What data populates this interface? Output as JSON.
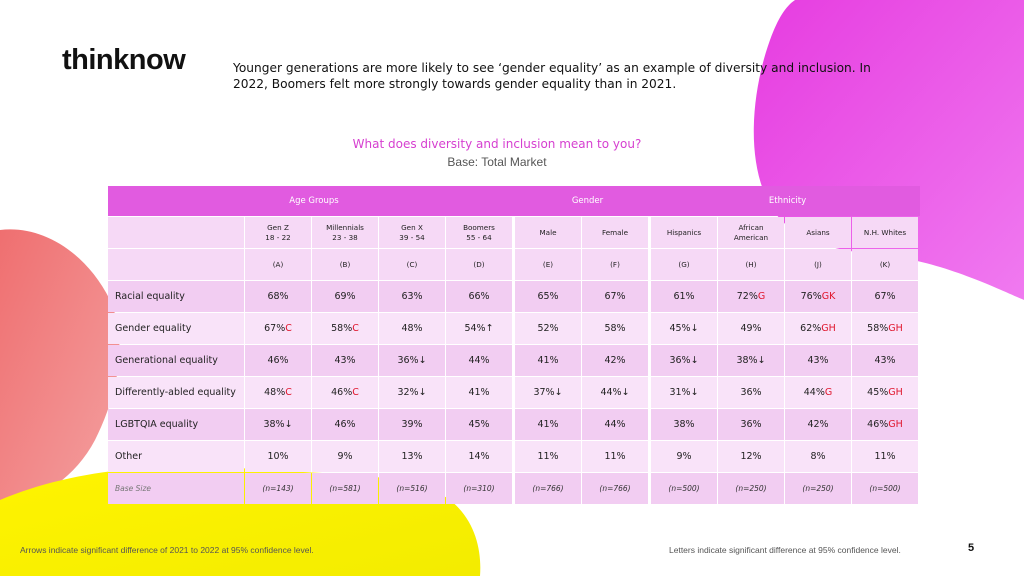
{
  "brand": {
    "logo_text": "thinknow"
  },
  "headline": "Younger generations are more likely to see ‘gender equality’ as an example of diversity and inclusion.  In 2022, Boomers felt more strongly towards gender equality than in 2021.",
  "question": "What does diversity and inclusion mean to you?",
  "base_text": "Base: Total Market",
  "colors": {
    "header_magenta": "#e15be0",
    "question_pink": "#d63fd0",
    "significance_red": "#e0142b"
  },
  "table": {
    "groups": [
      "Age Groups",
      "Gender",
      "Ethnicity"
    ],
    "columns": [
      {
        "line1": "Gen Z",
        "line2": "18 - 22",
        "letter": "(A)"
      },
      {
        "line1": "Millennials",
        "line2": "23 - 38",
        "letter": "(B)"
      },
      {
        "line1": "Gen X",
        "line2": "39 - 54",
        "letter": "(C)"
      },
      {
        "line1": "Boomers",
        "line2": "55 - 64",
        "letter": "(D)"
      },
      {
        "line1": "Male",
        "line2": "",
        "letter": "(E)"
      },
      {
        "line1": "Female",
        "line2": "",
        "letter": "(F)"
      },
      {
        "line1": "Hispanics",
        "line2": "",
        "letter": "(G)"
      },
      {
        "line1": "African",
        "line2": "American",
        "letter": "(H)"
      },
      {
        "line1": "Asians",
        "line2": "",
        "letter": "(J)"
      },
      {
        "line1": "N.H. Whites",
        "line2": "",
        "letter": "(K)"
      }
    ],
    "rows": [
      {
        "label": "Racial equality",
        "cells": [
          {
            "value": "68%",
            "mark": ""
          },
          {
            "value": "69%",
            "mark": ""
          },
          {
            "value": "63%",
            "mark": ""
          },
          {
            "value": "66%",
            "mark": ""
          },
          {
            "value": "65%",
            "mark": ""
          },
          {
            "value": "67%",
            "mark": ""
          },
          {
            "value": "61%",
            "mark": ""
          },
          {
            "value": "72%",
            "mark": "G"
          },
          {
            "value": "76%",
            "mark": "GK"
          },
          {
            "value": "67%",
            "mark": ""
          }
        ]
      },
      {
        "label": "Gender equality",
        "cells": [
          {
            "value": "67%",
            "mark": "C"
          },
          {
            "value": "58%",
            "mark": "C"
          },
          {
            "value": "48%",
            "mark": ""
          },
          {
            "value": "54%↑",
            "mark": ""
          },
          {
            "value": "52%",
            "mark": ""
          },
          {
            "value": "58%",
            "mark": ""
          },
          {
            "value": "45%↓",
            "mark": ""
          },
          {
            "value": "49%",
            "mark": ""
          },
          {
            "value": "62%",
            "mark": "GH"
          },
          {
            "value": "58%",
            "mark": "GH"
          }
        ]
      },
      {
        "label": "Generational equality",
        "cells": [
          {
            "value": "46%",
            "mark": ""
          },
          {
            "value": "43%",
            "mark": ""
          },
          {
            "value": "36%↓",
            "mark": ""
          },
          {
            "value": "44%",
            "mark": ""
          },
          {
            "value": "41%",
            "mark": ""
          },
          {
            "value": "42%",
            "mark": ""
          },
          {
            "value": "36%↓",
            "mark": ""
          },
          {
            "value": "38%↓",
            "mark": ""
          },
          {
            "value": "43%",
            "mark": ""
          },
          {
            "value": "43%",
            "mark": ""
          }
        ]
      },
      {
        "label": "Differently-abled equality",
        "cells": [
          {
            "value": "48%",
            "mark": "C"
          },
          {
            "value": "46%",
            "mark": "C"
          },
          {
            "value": "32%↓",
            "mark": ""
          },
          {
            "value": "41%",
            "mark": ""
          },
          {
            "value": "37%↓",
            "mark": ""
          },
          {
            "value": "44%↓",
            "mark": ""
          },
          {
            "value": "31%↓",
            "mark": ""
          },
          {
            "value": "36%",
            "mark": ""
          },
          {
            "value": "44%",
            "mark": "G"
          },
          {
            "value": "45%",
            "mark": "GH"
          }
        ]
      },
      {
        "label": "LGBTQIA equality",
        "cells": [
          {
            "value": "38%↓",
            "mark": ""
          },
          {
            "value": "46%",
            "mark": ""
          },
          {
            "value": "39%",
            "mark": ""
          },
          {
            "value": "45%",
            "mark": ""
          },
          {
            "value": "41%",
            "mark": ""
          },
          {
            "value": "44%",
            "mark": ""
          },
          {
            "value": "38%",
            "mark": ""
          },
          {
            "value": "36%",
            "mark": ""
          },
          {
            "value": "42%",
            "mark": ""
          },
          {
            "value": "46%",
            "mark": "GH"
          }
        ]
      },
      {
        "label": "Other",
        "cells": [
          {
            "value": "10%",
            "mark": ""
          },
          {
            "value": "9%",
            "mark": ""
          },
          {
            "value": "13%",
            "mark": ""
          },
          {
            "value": "14%",
            "mark": ""
          },
          {
            "value": "11%",
            "mark": ""
          },
          {
            "value": "11%",
            "mark": ""
          },
          {
            "value": "9%",
            "mark": ""
          },
          {
            "value": "12%",
            "mark": ""
          },
          {
            "value": "8%",
            "mark": ""
          },
          {
            "value": "11%",
            "mark": ""
          }
        ]
      }
    ],
    "base_row": {
      "label": "Base Size",
      "values": [
        "(n=143)",
        "(n=581)",
        "(n=516)",
        "(n=310)",
        "(n=766)",
        "(n=766)",
        "(n=500)",
        "(n=250)",
        "(n=250)",
        "(n=500)"
      ]
    }
  },
  "footnotes": {
    "left": "Arrows indicate significant difference of 2021 to 2022 at 95% confidence level.",
    "right": "Letters indicate significant difference at 95% confidence level."
  },
  "page_number": "5"
}
